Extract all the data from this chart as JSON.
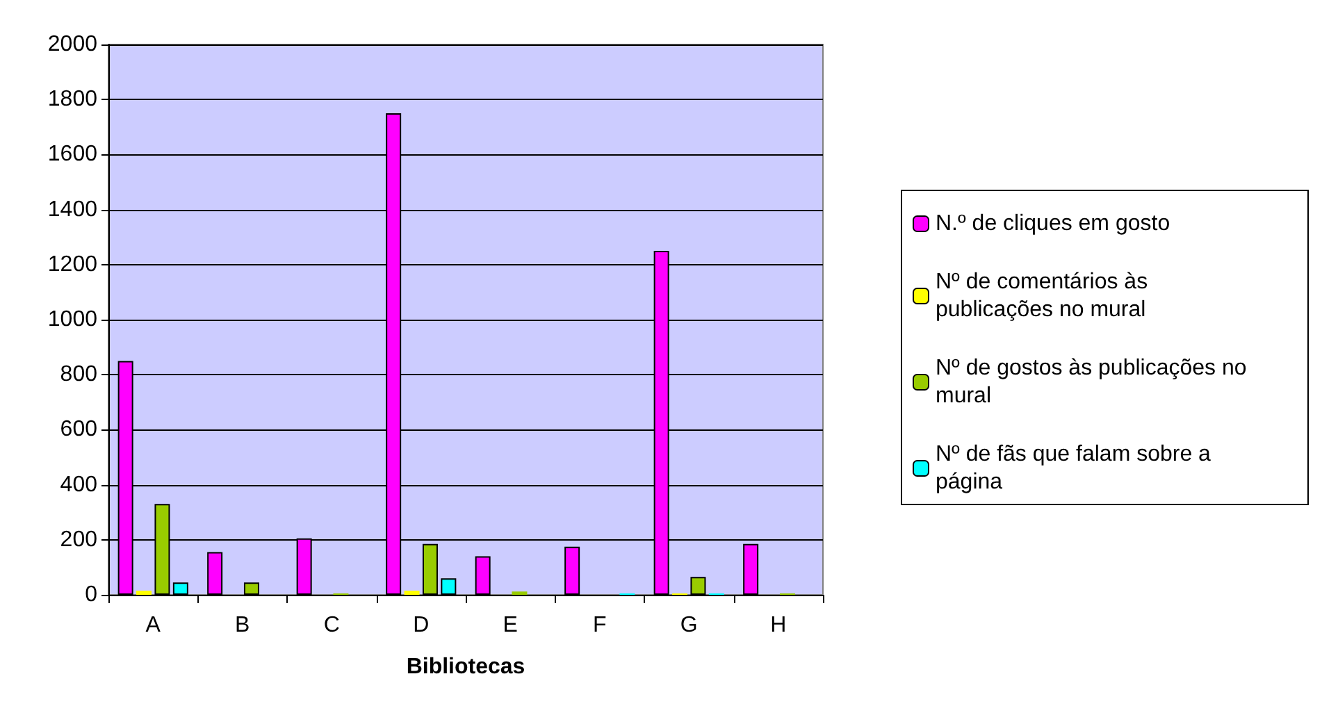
{
  "chart_data": {
    "type": "bar",
    "xlabel": "Bibliotecas",
    "categories": [
      "A",
      "B",
      "C",
      "D",
      "E",
      "F",
      "G",
      "H"
    ],
    "series": [
      {
        "name": "N.º de cliques em gosto",
        "color": "#ff00ff",
        "values": [
          850,
          155,
          205,
          1750,
          140,
          175,
          1250,
          185
        ]
      },
      {
        "name": "Nº de comentários às publicações no mural",
        "color": "#ffff00",
        "values": [
          15,
          0,
          0,
          15,
          0,
          0,
          5,
          0
        ]
      },
      {
        "name": "Nº de gostos às publicações no mural",
        "color": "#99cc00",
        "values": [
          330,
          45,
          5,
          185,
          12,
          0,
          65,
          5
        ]
      },
      {
        "name": "Nº de fãs que falam sobre a página",
        "color": "#00ffff",
        "values": [
          45,
          0,
          0,
          60,
          0,
          5,
          5,
          0
        ]
      }
    ],
    "ylim": [
      0,
      2000
    ],
    "yticks": [
      0,
      200,
      400,
      600,
      800,
      1000,
      1200,
      1400,
      1600,
      1800,
      2000
    ],
    "grid": "y",
    "legend": "right"
  }
}
